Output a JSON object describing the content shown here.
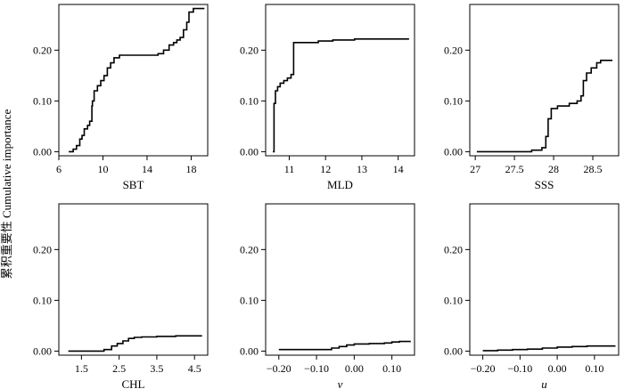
{
  "chart_data": [
    {
      "type": "line",
      "xlabel": "SBT",
      "xlim": [
        6,
        19.5
      ],
      "ylim": [
        -0.008,
        0.29
      ],
      "xticks": [
        6,
        10,
        14,
        18
      ],
      "yticks": [
        0.0,
        0.1,
        0.2
      ],
      "ytick_labels": [
        "0.00",
        "0.10",
        "0.20"
      ],
      "series": [
        {
          "x": [
            6.9,
            7.3,
            7.6,
            7.9,
            8.1,
            8.3,
            8.6,
            8.8,
            9.0,
            9.05,
            9.2,
            9.5,
            9.8,
            10.1,
            10.4,
            10.7,
            11.0,
            11.5,
            12.5,
            13.5,
            14.3,
            15.0,
            15.5,
            16.0,
            16.4,
            16.7,
            17.0,
            17.3,
            17.6,
            17.8,
            18.2,
            19.2
          ],
          "y": [
            0.0,
            0.005,
            0.012,
            0.025,
            0.032,
            0.045,
            0.052,
            0.06,
            0.09,
            0.1,
            0.12,
            0.13,
            0.14,
            0.15,
            0.165,
            0.175,
            0.185,
            0.19,
            0.19,
            0.19,
            0.19,
            0.193,
            0.2,
            0.21,
            0.215,
            0.22,
            0.225,
            0.24,
            0.255,
            0.275,
            0.282,
            0.282
          ]
        }
      ]
    },
    {
      "type": "line",
      "xlabel": "MLD",
      "xlim": [
        10.35,
        14.45
      ],
      "ylim": [
        -0.008,
        0.29
      ],
      "xticks": [
        11,
        12,
        13,
        14
      ],
      "yticks": [
        0.0,
        0.1,
        0.2
      ],
      "ytick_labels": [
        "0.00",
        "0.10",
        "0.20"
      ],
      "series": [
        {
          "x": [
            10.55,
            10.58,
            10.62,
            10.68,
            10.75,
            10.85,
            10.95,
            11.05,
            11.12,
            11.4,
            11.8,
            12.2,
            12.8,
            14.3
          ],
          "y": [
            0.0,
            0.095,
            0.12,
            0.128,
            0.135,
            0.14,
            0.145,
            0.152,
            0.215,
            0.215,
            0.218,
            0.22,
            0.222,
            0.222
          ]
        }
      ]
    },
    {
      "type": "line",
      "xlabel": "SSS",
      "xlim": [
        26.93,
        28.83
      ],
      "ylim": [
        -0.008,
        0.29
      ],
      "xticks": [
        27.0,
        27.5,
        28.0,
        28.5
      ],
      "yticks": [
        0.0,
        0.1,
        0.2
      ],
      "ytick_labels": [
        "0.00",
        "0.10",
        "0.20"
      ],
      "series": [
        {
          "x": [
            27.02,
            27.6,
            27.72,
            27.85,
            27.9,
            27.93,
            27.97,
            28.05,
            28.2,
            28.3,
            28.35,
            28.38,
            28.42,
            28.48,
            28.55,
            28.6,
            28.75
          ],
          "y": [
            0.0,
            0.0,
            0.003,
            0.008,
            0.03,
            0.065,
            0.085,
            0.09,
            0.095,
            0.1,
            0.11,
            0.14,
            0.155,
            0.165,
            0.175,
            0.18,
            0.18
          ]
        }
      ]
    },
    {
      "type": "line",
      "xlabel": "CHL",
      "xlim": [
        0.9,
        4.85
      ],
      "ylim": [
        -0.008,
        0.29
      ],
      "xticks": [
        1.5,
        2.5,
        3.5,
        4.5
      ],
      "yticks": [
        0.0,
        0.1,
        0.2
      ],
      "ytick_labels": [
        "0.00",
        "0.10",
        "0.20"
      ],
      "series": [
        {
          "x": [
            1.15,
            1.9,
            2.1,
            2.3,
            2.45,
            2.6,
            2.75,
            2.9,
            3.1,
            3.5,
            4.0,
            4.7
          ],
          "y": [
            0.0,
            0.0,
            0.003,
            0.01,
            0.015,
            0.02,
            0.025,
            0.027,
            0.028,
            0.029,
            0.03,
            0.03
          ]
        }
      ]
    },
    {
      "type": "line",
      "xlabel": "v",
      "xlim": [
        -0.235,
        0.16
      ],
      "ylim": [
        -0.008,
        0.29
      ],
      "xticks": [
        -0.2,
        -0.1,
        0.0,
        0.1
      ],
      "xtick_labels": [
        "−0.20",
        "−0.10",
        "0.00",
        "0.10"
      ],
      "yticks": [
        0.0,
        0.1,
        0.2
      ],
      "ytick_labels": [
        "0.00",
        "0.10",
        "0.20"
      ],
      "series": [
        {
          "x": [
            -0.2,
            -0.08,
            -0.06,
            -0.04,
            -0.02,
            0.0,
            0.04,
            0.08,
            0.1,
            0.12,
            0.15
          ],
          "y": [
            0.003,
            0.003,
            0.006,
            0.009,
            0.012,
            0.014,
            0.015,
            0.016,
            0.018,
            0.019,
            0.019
          ]
        }
      ]
    },
    {
      "type": "line",
      "xlabel": "u",
      "xlim": [
        -0.235,
        0.165
      ],
      "ylim": [
        -0.008,
        0.29
      ],
      "xticks": [
        -0.2,
        -0.1,
        0.0,
        0.1
      ],
      "xtick_labels": [
        "−0.20",
        "−0.10",
        "0.00",
        "0.10"
      ],
      "yticks": [
        0.0,
        0.1,
        0.2
      ],
      "ytick_labels": [
        "0.00",
        "0.10",
        "0.20"
      ],
      "series": [
        {
          "x": [
            -0.2,
            -0.16,
            -0.12,
            -0.08,
            -0.04,
            0.0,
            0.04,
            0.08,
            0.155
          ],
          "y": [
            0.001,
            0.002,
            0.003,
            0.004,
            0.006,
            0.008,
            0.009,
            0.01,
            0.011
          ]
        }
      ]
    }
  ],
  "ylabel": "累积重要性 Cumulative importance",
  "grid": false
}
